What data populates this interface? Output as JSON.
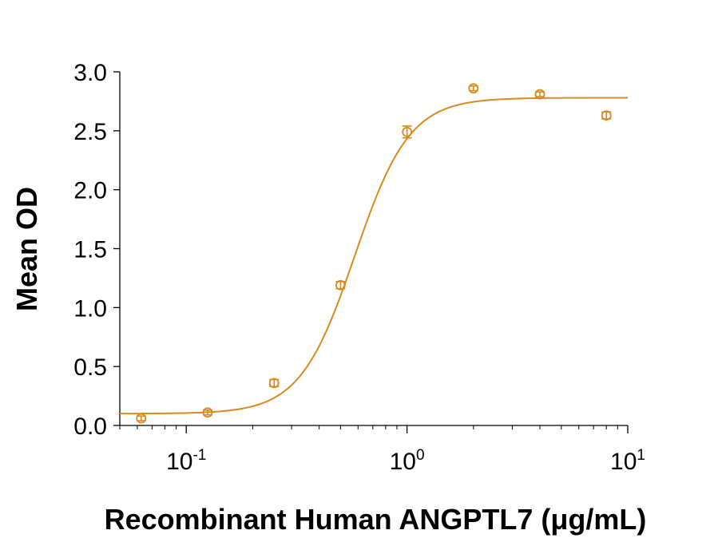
{
  "chart_data": {
    "type": "scatter",
    "title": "",
    "xlabel": "Recombinant Human ANGPTL7 (μg/mL)",
    "ylabel": "Mean OD",
    "xscale": "log",
    "xlim": [
      0.05,
      10
    ],
    "ylim": [
      0,
      3.0
    ],
    "grid": false,
    "legend": "none",
    "color": "#D98A1E",
    "x_ticks": [
      {
        "value": 0.1,
        "base": "10",
        "exp": "-1"
      },
      {
        "value": 1,
        "base": "10",
        "exp": "0"
      },
      {
        "value": 10,
        "base": "10",
        "exp": "1"
      }
    ],
    "y_ticks": [
      {
        "value": 0.0,
        "label": "0.0"
      },
      {
        "value": 0.5,
        "label": "0.5"
      },
      {
        "value": 1.0,
        "label": "1.0"
      },
      {
        "value": 1.5,
        "label": "1.5"
      },
      {
        "value": 2.0,
        "label": "2.0"
      },
      {
        "value": 2.5,
        "label": "2.5"
      },
      {
        "value": 3.0,
        "label": "3.0"
      }
    ],
    "points": [
      {
        "x": 0.0625,
        "y": 0.06,
        "err": 0.02
      },
      {
        "x": 0.125,
        "y": 0.11,
        "err": 0.02
      },
      {
        "x": 0.25,
        "y": 0.36,
        "err": 0.03
      },
      {
        "x": 0.5,
        "y": 1.19,
        "err": 0.03
      },
      {
        "x": 1.0,
        "y": 2.49,
        "err": 0.05
      },
      {
        "x": 2.0,
        "y": 2.86,
        "err": 0.02
      },
      {
        "x": 4.0,
        "y": 2.81,
        "err": 0.02
      },
      {
        "x": 8.0,
        "y": 2.63,
        "err": 0.03
      }
    ],
    "fit": {
      "model": "4PL",
      "bottom": 0.1,
      "top": 2.78,
      "ec50": 0.58,
      "hill": 3.5
    }
  }
}
